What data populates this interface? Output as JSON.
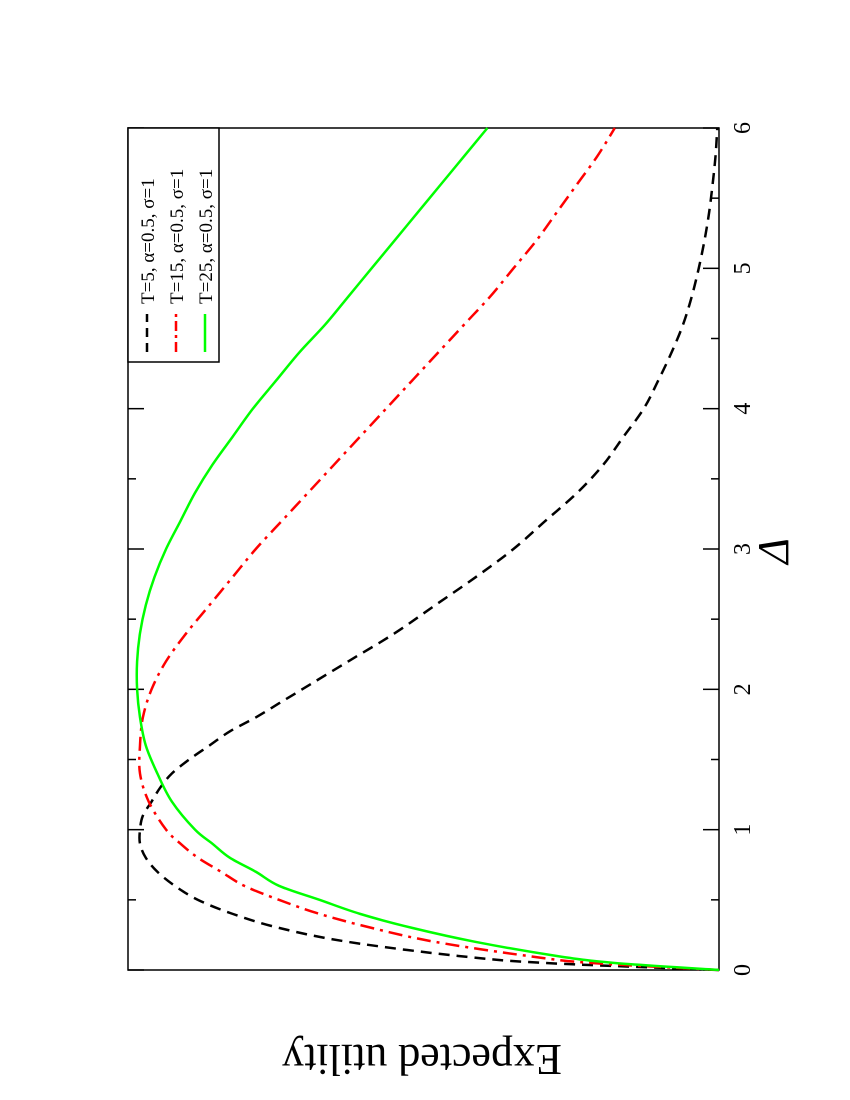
{
  "chart_data": {
    "type": "line",
    "orientation": "rotated-90-clockwise",
    "xlabel": "Δ",
    "ylabel": "Expected utility",
    "xlim": [
      0,
      6
    ],
    "x_ticks": [
      "0",
      "1",
      "2",
      "3",
      "4",
      "5",
      "6"
    ],
    "y_ticks_labeled": false,
    "legend_position": "top-right",
    "series": [
      {
        "name": "T=5, α=0.5, σ=1",
        "style": "dashed",
        "color": "#000000",
        "x": [
          0,
          0.05,
          0.1,
          0.2,
          0.3,
          0.4,
          0.5,
          0.6,
          0.7,
          0.8,
          0.9,
          1.0,
          1.1,
          1.2,
          1.3,
          1.4,
          1.5,
          1.6,
          1.7,
          1.8,
          1.9,
          2.0,
          2.2,
          2.4,
          2.6,
          2.8,
          3.0,
          3.2,
          3.4,
          3.6,
          3.8,
          4.0,
          4.2,
          4.4,
          4.6,
          4.8,
          5.0,
          5.2,
          5.4,
          5.6,
          5.8,
          6.0
        ],
        "y": [
          0,
          0.3,
          0.45,
          0.64,
          0.76,
          0.84,
          0.9,
          0.94,
          0.97,
          0.99,
          1.0,
          1.0,
          0.995,
          0.98,
          0.965,
          0.945,
          0.915,
          0.88,
          0.845,
          0.8,
          0.76,
          0.72,
          0.64,
          0.56,
          0.49,
          0.42,
          0.355,
          0.3,
          0.245,
          0.2,
          0.165,
          0.13,
          0.105,
          0.082,
          0.062,
          0.047,
          0.035,
          0.025,
          0.017,
          0.011,
          0.006,
          0.003
        ]
      },
      {
        "name": "T=15, α=0.5, σ=1",
        "style": "dash-dot",
        "color": "#ff0000",
        "x": [
          0,
          0.05,
          0.1,
          0.2,
          0.3,
          0.4,
          0.5,
          0.6,
          0.7,
          0.8,
          0.9,
          1.0,
          1.2,
          1.4,
          1.6,
          1.8,
          2.0,
          2.2,
          2.4,
          2.6,
          2.8,
          3.0,
          3.2,
          3.4,
          3.6,
          3.8,
          4.0,
          4.2,
          4.4,
          4.6,
          4.8,
          5.0,
          5.2,
          5.4,
          5.6,
          5.8,
          6.0
        ],
        "y": [
          0,
          0.22,
          0.33,
          0.49,
          0.6,
          0.69,
          0.76,
          0.82,
          0.86,
          0.9,
          0.93,
          0.955,
          0.985,
          1.0,
          1.0,
          0.995,
          0.98,
          0.955,
          0.92,
          0.88,
          0.84,
          0.8,
          0.755,
          0.71,
          0.665,
          0.62,
          0.575,
          0.53,
          0.485,
          0.44,
          0.395,
          0.355,
          0.315,
          0.28,
          0.245,
          0.21,
          0.18
        ]
      },
      {
        "name": "T=25, α=0.5, σ=1",
        "style": "solid",
        "color": "#00ff00",
        "x": [
          0,
          0.05,
          0.1,
          0.2,
          0.3,
          0.4,
          0.5,
          0.6,
          0.7,
          0.8,
          0.9,
          1.0,
          1.2,
          1.4,
          1.6,
          1.8,
          2.0,
          2.2,
          2.4,
          2.6,
          2.8,
          3.0,
          3.2,
          3.4,
          3.6,
          3.8,
          4.0,
          4.2,
          4.4,
          4.6,
          4.8,
          5.0,
          5.2,
          5.4,
          5.6,
          5.8,
          6.0
        ],
        "y": [
          0,
          0.18,
          0.28,
          0.42,
          0.53,
          0.62,
          0.69,
          0.76,
          0.8,
          0.845,
          0.875,
          0.905,
          0.945,
          0.97,
          0.99,
          1.0,
          1.005,
          1.005,
          1.0,
          0.99,
          0.975,
          0.955,
          0.93,
          0.905,
          0.875,
          0.84,
          0.805,
          0.765,
          0.725,
          0.68,
          0.64,
          0.6,
          0.56,
          0.52,
          0.48,
          0.44,
          0.4
        ]
      }
    ]
  }
}
